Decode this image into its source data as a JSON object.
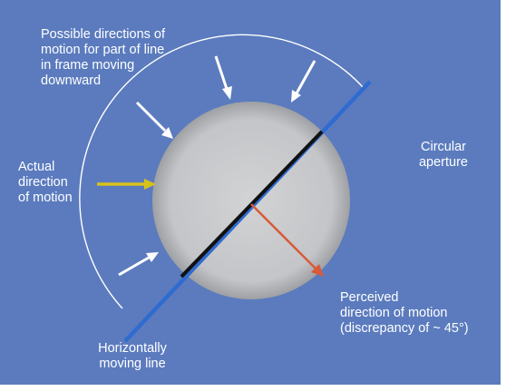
{
  "labels": {
    "possible_directions": "Possible directions of\nmotion for part of line\nin frame moving\ndownward",
    "actual_direction": "Actual\ndirection\nof motion",
    "circular_aperture": "Circular\naperture",
    "perceived_direction": "Perceived\ndirection of motion\n(discrepancy of ~ 45°)",
    "horizontally_moving_line": "Horizontally\nmoving line"
  },
  "colors": {
    "background": "#5b7bbe",
    "aperture_fill": "#c9cacc",
    "moving_line": "#2f6bd0",
    "visible_segment": "#111111",
    "actual_arrow": "#d8c21a",
    "perceived_arrow": "#d95a38",
    "possible_arrows": "#ffffff"
  }
}
